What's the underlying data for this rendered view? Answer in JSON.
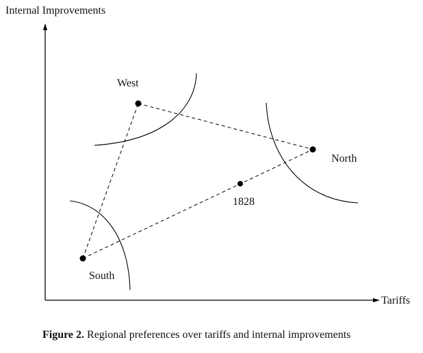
{
  "axes": {
    "y_label": "Internal Improvements",
    "x_label": "Tariffs"
  },
  "points": {
    "west": "West",
    "north": "North",
    "south": "South",
    "status_quo": "1828"
  },
  "caption": {
    "number": "Figure 2.",
    "text": "Regional preferences over tariffs and internal improvements"
  }
}
